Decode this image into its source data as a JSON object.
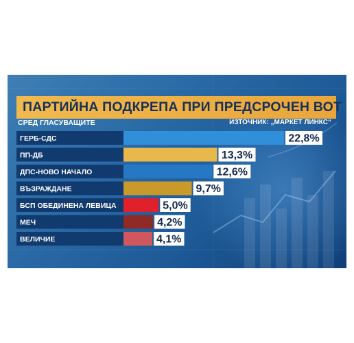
{
  "title": "ПАРТИЙНА ПОДКРЕПА ПРИ ПРЕДСРОЧЕН ВОТ",
  "subtitle": "СРЕД ГЛАСУВАЩИТЕ",
  "source": "ИЗТОЧНИК: „МАРКЕТ ЛИНКС“",
  "chart_data": {
    "type": "bar",
    "orientation": "horizontal",
    "categories": [
      "ГЕРБ-СДС",
      "ПП-ДБ",
      "ДПС-НОВО НАЧАЛО",
      "ВЪЗРАЖДАНЕ",
      "БСП ОБЕДИНЕНА ЛЕВИЦА",
      "МЕЧ",
      "ВЕЛИЧИЕ"
    ],
    "values": [
      22.8,
      13.3,
      12.6,
      9.7,
      5.0,
      4.2,
      4.1
    ],
    "value_labels": [
      "22,8%",
      "13,3%",
      "12,6%",
      "9,7%",
      "5,0%",
      "4,2%",
      "4,1%"
    ],
    "colors": [
      "#2f8fd8",
      "#e9b84a",
      "#2678c4",
      "#c99a2a",
      "#e0202b",
      "#8f2a27",
      "#d0575b"
    ],
    "unit": "%"
  }
}
